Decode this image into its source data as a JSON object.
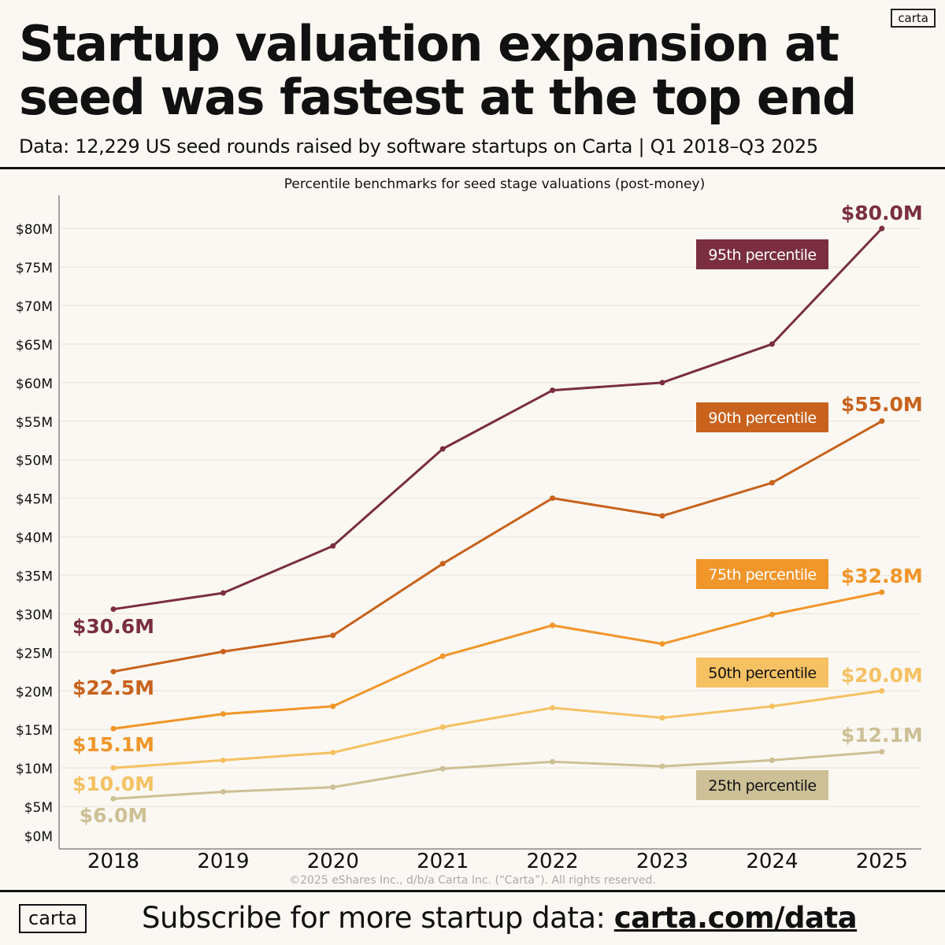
{
  "header": {
    "title": "Startup valuation expansion at seed was fastest at the top end",
    "subtitle": "Data: 12,229 US seed rounds raised by software startups on Carta | Q1 2018–Q3 2025",
    "logo": "carta"
  },
  "chart_data": {
    "type": "line",
    "title": "Percentile benchmarks for seed stage valuations (post-money)",
    "xlabel": "",
    "ylabel": "",
    "categories": [
      "2018",
      "2019",
      "2020",
      "2021",
      "2022",
      "2023",
      "2024",
      "2025"
    ],
    "ylim": [
      0,
      80
    ],
    "yticks": [
      "$0M",
      "$5M",
      "$10M",
      "$15M",
      "$20M",
      "$25M",
      "$30M",
      "$35M",
      "$40M",
      "$45M",
      "$50M",
      "$55M",
      "$60M",
      "$65M",
      "$70M",
      "$75M",
      "$80M"
    ],
    "grid": true,
    "series": [
      {
        "name": "95th percentile",
        "color": "#7a2e40",
        "label_text_color": "#ffffff",
        "values": [
          30.6,
          32.7,
          38.8,
          51.4,
          59.0,
          60.0,
          65.0,
          80.0
        ],
        "start_label": "$30.6M",
        "end_label": "$80.0M"
      },
      {
        "name": "90th percentile",
        "color": "#c8621d",
        "label_text_color": "#ffffff",
        "values": [
          22.5,
          25.1,
          27.2,
          36.5,
          45.0,
          42.7,
          47.0,
          55.0
        ],
        "start_label": "$22.5M",
        "end_label": "$55.0M"
      },
      {
        "name": "75th percentile",
        "color": "#f0962a",
        "label_text_color": "#ffffff",
        "values": [
          15.1,
          17.0,
          18.0,
          24.5,
          28.5,
          26.1,
          29.9,
          32.8
        ],
        "start_label": "$15.1M",
        "end_label": "$32.8M"
      },
      {
        "name": "50th percentile",
        "color": "#f5c162",
        "label_text_color": "#111111",
        "values": [
          10.0,
          11.0,
          12.0,
          15.3,
          17.8,
          16.5,
          18.0,
          20.0
        ],
        "start_label": "$10.0M",
        "end_label": "$20.0M"
      },
      {
        "name": "25th percentile",
        "color": "#cdc096",
        "label_text_color": "#111111",
        "values": [
          6.0,
          6.9,
          7.5,
          9.9,
          10.8,
          10.2,
          11.0,
          12.1
        ],
        "start_label": "$6.0M",
        "end_label": "$12.1M"
      }
    ]
  },
  "copyright": "©2025 eShares Inc., d/b/a Carta Inc. (“Carta”). All rights reserved.",
  "footer": {
    "logo": "carta",
    "text": "Subscribe for more startup data: ",
    "link": "carta.com/data"
  }
}
